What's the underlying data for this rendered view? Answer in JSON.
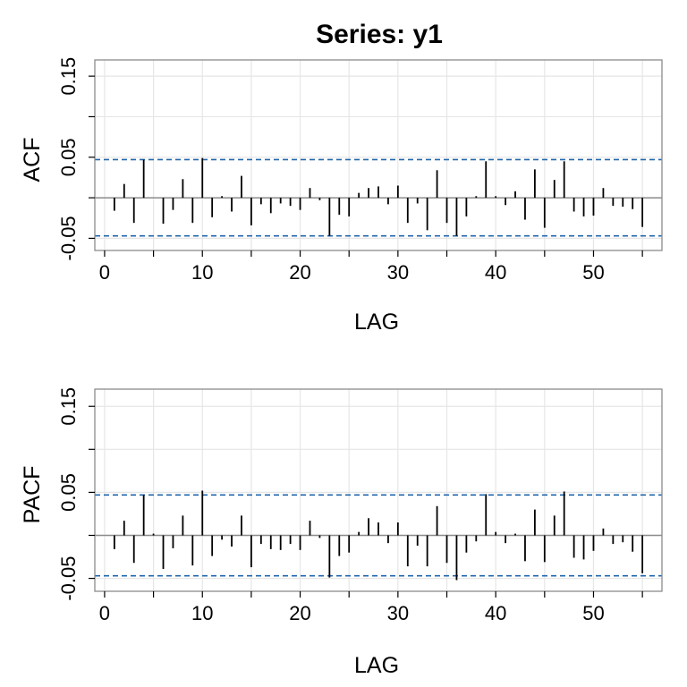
{
  "title": "Series:  y1",
  "chart_data": [
    {
      "type": "bar",
      "panel": "acf",
      "ylabel": "ACF",
      "xlabel": "LAG",
      "xlim": [
        -1,
        57
      ],
      "ylim": [
        -0.065,
        0.17
      ],
      "x_ticks": [
        0,
        10,
        20,
        30,
        40,
        50
      ],
      "x_tick_labels": [
        "0",
        "10",
        "20",
        "30",
        "40",
        "50"
      ],
      "y_ticks": [
        -0.05,
        0.05,
        0.15
      ],
      "y_tick_labels": [
        "-0.05",
        "0.05",
        "0.15"
      ],
      "confidence_bound": 0.047,
      "grid": true,
      "lags": [
        1,
        2,
        3,
        4,
        5,
        6,
        7,
        8,
        9,
        10,
        11,
        12,
        13,
        14,
        15,
        16,
        17,
        18,
        19,
        20,
        21,
        22,
        23,
        24,
        25,
        26,
        27,
        28,
        29,
        30,
        31,
        32,
        33,
        34,
        35,
        36,
        37,
        38,
        39,
        40,
        41,
        42,
        43,
        44,
        45,
        46,
        47,
        48,
        49,
        50,
        51,
        52,
        53,
        54,
        55
      ],
      "values": [
        -0.016,
        0.017,
        -0.031,
        0.047,
        0.0,
        -0.032,
        -0.015,
        0.023,
        -0.031,
        0.049,
        -0.024,
        0.002,
        -0.017,
        0.027,
        -0.034,
        -0.008,
        -0.019,
        -0.007,
        -0.01,
        -0.015,
        0.012,
        -0.003,
        -0.047,
        -0.021,
        -0.023,
        0.006,
        0.012,
        0.014,
        -0.008,
        0.015,
        -0.031,
        -0.007,
        -0.04,
        0.034,
        -0.031,
        -0.047,
        -0.023,
        0.002,
        0.045,
        0.002,
        -0.009,
        0.008,
        -0.027,
        0.035,
        -0.037,
        0.022,
        0.045,
        -0.017,
        -0.023,
        -0.022,
        0.012,
        -0.01,
        -0.011,
        -0.014,
        -0.036
      ]
    },
    {
      "type": "bar",
      "panel": "pacf",
      "ylabel": "PACF",
      "xlabel": "LAG",
      "xlim": [
        -1,
        57
      ],
      "ylim": [
        -0.065,
        0.17
      ],
      "x_ticks": [
        0,
        10,
        20,
        30,
        40,
        50
      ],
      "x_tick_labels": [
        "0",
        "10",
        "20",
        "30",
        "40",
        "50"
      ],
      "y_ticks": [
        -0.05,
        0.05,
        0.15
      ],
      "y_tick_labels": [
        "-0.05",
        "0.05",
        "0.15"
      ],
      "confidence_bound": 0.047,
      "grid": true,
      "lags": [
        1,
        2,
        3,
        4,
        5,
        6,
        7,
        8,
        9,
        10,
        11,
        12,
        13,
        14,
        15,
        16,
        17,
        18,
        19,
        20,
        21,
        22,
        23,
        24,
        25,
        26,
        27,
        28,
        29,
        30,
        31,
        32,
        33,
        34,
        35,
        36,
        37,
        38,
        39,
        40,
        41,
        42,
        43,
        44,
        45,
        46,
        47,
        48,
        49,
        50,
        51,
        52,
        53,
        54,
        55
      ],
      "values": [
        -0.016,
        0.017,
        -0.032,
        0.047,
        0.002,
        -0.039,
        -0.015,
        0.023,
        -0.035,
        0.052,
        -0.024,
        -0.005,
        -0.013,
        0.023,
        -0.037,
        -0.01,
        -0.016,
        -0.017,
        -0.01,
        -0.017,
        0.017,
        -0.003,
        -0.049,
        -0.024,
        -0.02,
        0.004,
        0.02,
        0.015,
        -0.009,
        0.015,
        -0.036,
        -0.012,
        -0.036,
        0.034,
        -0.032,
        -0.052,
        -0.02,
        -0.007,
        0.048,
        0.004,
        -0.009,
        0.002,
        -0.03,
        0.03,
        -0.031,
        0.023,
        0.051,
        -0.026,
        -0.028,
        -0.018,
        0.008,
        -0.01,
        -0.008,
        -0.019,
        -0.044
      ]
    }
  ]
}
